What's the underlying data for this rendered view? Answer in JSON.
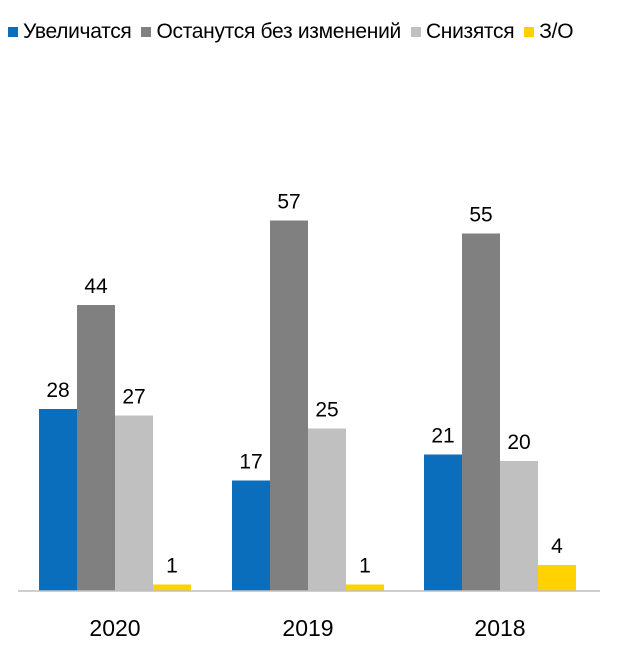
{
  "chart_data": {
    "type": "bar",
    "categories": [
      "2020",
      "2019",
      "2018"
    ],
    "series": [
      {
        "name": "Увеличатся",
        "color": "#0a6ebd",
        "values": [
          28,
          17,
          21
        ]
      },
      {
        "name": "Останутся без изменений",
        "color": "#808080",
        "values": [
          44,
          57,
          55
        ]
      },
      {
        "name": "Снизятся",
        "color": "#c0c0c0",
        "values": [
          27,
          25,
          20
        ]
      },
      {
        "name": "З/О",
        "color": "#ffd200",
        "values": [
          1,
          1,
          4
        ]
      }
    ],
    "title": "",
    "xlabel": "",
    "ylabel": "",
    "ylim": [
      0,
      60
    ],
    "grid": false,
    "legend_position": "top",
    "data_labels": true
  }
}
